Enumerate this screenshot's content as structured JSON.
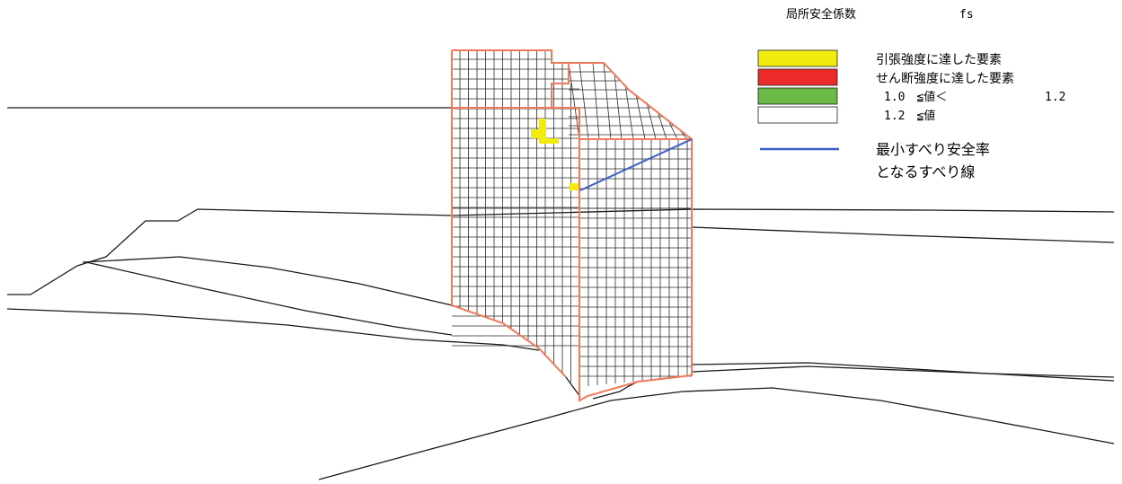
{
  "legend": {
    "title": "局所安全係数",
    "symbol": "fs",
    "items": [
      {
        "label": "引張強度に達した要素",
        "color": "#f2ec0e"
      },
      {
        "label": "せん断強度に達した要素",
        "color": "#ec2a2a"
      },
      {
        "label": "1.0　≦値＜",
        "upper": "1.2",
        "color": "#6cb945"
      },
      {
        "label": "1.2　≦値",
        "color": "#ffffff"
      }
    ],
    "slip_line": {
      "label_line1": "最小すべり安全率",
      "label_line2": "となるすべり線",
      "color": "#3a5fc8"
    }
  },
  "colors": {
    "ground_line": "#1a1a1a",
    "mesh_line": "#2a2a2a",
    "structure_outline": "#f07a5a",
    "tension_element": "#f2ec0e"
  }
}
